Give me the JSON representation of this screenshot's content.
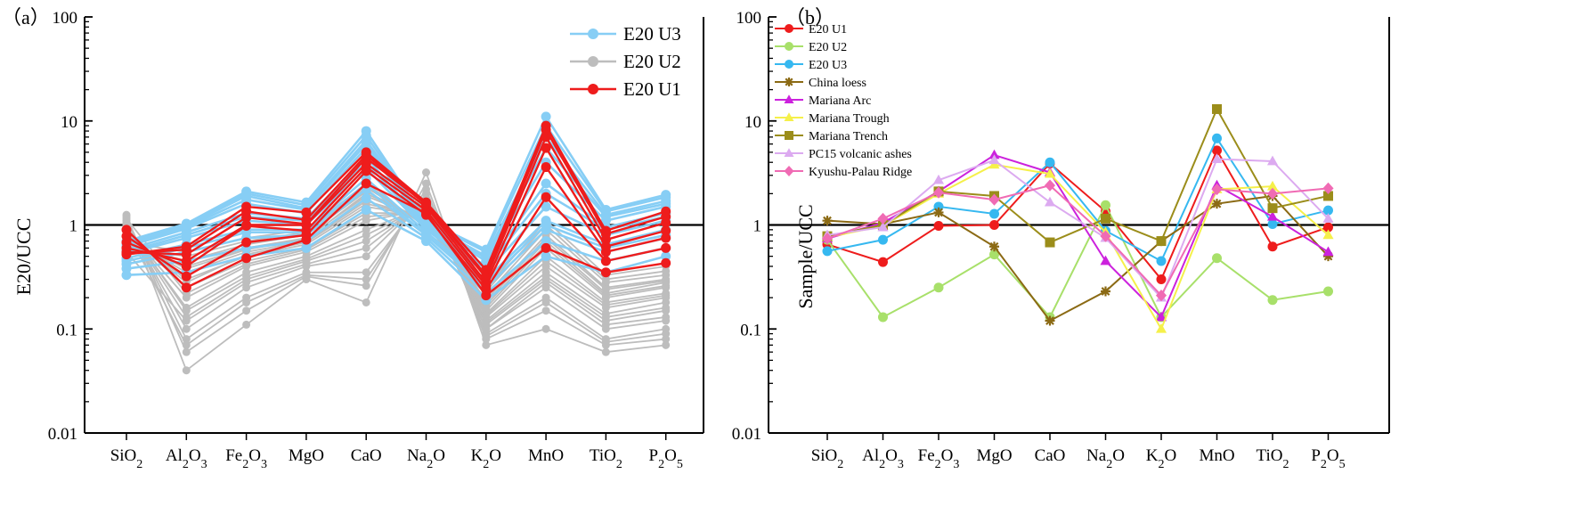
{
  "figure": {
    "colors": {
      "u1": "#ee1c1c",
      "u2": "#bdbdbd",
      "u3": "#87cef5",
      "b_u1": "#ee1c1c",
      "b_u2": "#a8e06a",
      "b_u3": "#36b8f0",
      "china": "#8b6a14",
      "arc": "#cc22dd",
      "trough": "#f5f04a",
      "trench": "#9b8d1a",
      "pc15": "#dcaaf0",
      "kyushu": "#f06bb4"
    }
  },
  "chart_data": [
    {
      "id": "a",
      "panel_label": "（a）",
      "type": "line",
      "scale": "log",
      "ylabel": "E20/UCC",
      "ylim": [
        0.01,
        100
      ],
      "yticks": [
        "0.01",
        "0.1",
        "1",
        "10",
        "100"
      ],
      "categories": [
        "SiO2",
        "Al2O3",
        "Fe2O3",
        "MgO",
        "CaO",
        "Na2O",
        "K2O",
        "MnO",
        "TiO2",
        "P2O5"
      ],
      "reference_line": 1,
      "legend": [
        {
          "label": "E20 U3",
          "color_key": "u3"
        },
        {
          "label": "E20 U2",
          "color_key": "u2"
        },
        {
          "label": "E20 U1",
          "color_key": "u1"
        }
      ],
      "series": [
        {
          "name": "E20 U2",
          "color_key": "u2",
          "lines": [
            [
              1.25,
              0.04,
              0.11,
              0.3,
              0.18,
              3.2,
              0.07,
              0.1,
              0.06,
              0.07
            ],
            [
              1.2,
              0.06,
              0.15,
              0.32,
              0.26,
              2.5,
              0.08,
              0.15,
              0.07,
              0.08
            ],
            [
              1.1,
              0.08,
              0.2,
              0.35,
              0.35,
              2.0,
              0.09,
              0.2,
              0.08,
              0.1
            ],
            [
              1.05,
              0.1,
              0.25,
              0.4,
              0.5,
              1.8,
              0.1,
              0.25,
              0.1,
              0.12
            ],
            [
              1.0,
              0.13,
              0.3,
              0.45,
              0.7,
              1.6,
              0.11,
              0.3,
              0.12,
              0.15
            ],
            [
              0.95,
              0.16,
              0.35,
              0.5,
              0.9,
              1.5,
              0.12,
              0.35,
              0.14,
              0.18
            ],
            [
              0.9,
              0.2,
              0.4,
              0.55,
              1.1,
              1.4,
              0.13,
              0.4,
              0.16,
              0.2
            ],
            [
              0.85,
              0.25,
              0.45,
              0.6,
              1.3,
              1.3,
              0.14,
              0.5,
              0.18,
              0.22
            ],
            [
              0.8,
              0.3,
              0.5,
              0.65,
              1.5,
              1.2,
              0.15,
              0.6,
              0.2,
              0.25
            ],
            [
              0.75,
              0.35,
              0.55,
              0.7,
              1.7,
              1.15,
              0.17,
              0.7,
              0.22,
              0.28
            ],
            [
              0.7,
              0.4,
              0.6,
              0.75,
              1.9,
              1.1,
              0.19,
              0.8,
              0.25,
              0.3
            ],
            [
              0.65,
              0.45,
              0.65,
              0.8,
              2.1,
              1.05,
              0.21,
              0.9,
              0.28,
              0.33
            ],
            [
              0.6,
              0.5,
              0.7,
              0.85,
              2.3,
              1.0,
              0.23,
              1.0,
              0.3,
              0.36
            ],
            [
              0.55,
              0.12,
              0.28,
              0.42,
              0.6,
              1.7,
              0.1,
              0.28,
              0.11,
              0.13
            ],
            [
              0.9,
              0.07,
              0.18,
              0.33,
              0.3,
              2.2,
              0.085,
              0.18,
              0.075,
              0.09
            ],
            [
              1.15,
              0.22,
              0.42,
              0.58,
              1.2,
              1.35,
              0.135,
              0.45,
              0.17,
              0.21
            ],
            [
              0.8,
              0.28,
              0.52,
              0.68,
              1.6,
              1.18,
              0.16,
              0.65,
              0.21,
              0.26
            ],
            [
              0.72,
              0.38,
              0.58,
              0.73,
              2.0,
              1.1,
              0.18,
              0.75,
              0.24,
              0.29
            ],
            [
              1.0,
              0.15,
              0.32,
              0.47,
              0.8,
              1.55,
              0.115,
              0.32,
              0.13,
              0.16
            ],
            [
              0.68,
              0.55,
              0.75,
              0.9,
              2.5,
              0.95,
              0.25,
              1.1,
              0.33,
              0.4
            ]
          ]
        },
        {
          "name": "E20 U3",
          "color_key": "u3",
          "lines": [
            [
              0.33,
              0.35,
              0.5,
              0.6,
              1.4,
              0.7,
              0.19,
              0.5,
              0.35,
              0.5
            ],
            [
              0.38,
              0.45,
              0.6,
              0.7,
              1.8,
              0.75,
              0.22,
              0.7,
              0.45,
              0.6
            ],
            [
              0.42,
              0.55,
              0.75,
              0.8,
              2.2,
              0.8,
              0.25,
              0.9,
              0.55,
              0.75
            ],
            [
              0.48,
              0.65,
              0.9,
              0.9,
              2.8,
              0.85,
              0.3,
              1.1,
              0.65,
              0.9
            ],
            [
              0.53,
              0.75,
              1.1,
              1.0,
              3.5,
              0.9,
              0.35,
              1.5,
              0.8,
              1.1
            ],
            [
              0.58,
              0.85,
              1.3,
              1.15,
              4.5,
              0.95,
              0.4,
              2.5,
              0.95,
              1.3
            ],
            [
              0.62,
              0.92,
              1.6,
              1.3,
              5.5,
              1.0,
              0.45,
              4.0,
              1.1,
              1.5
            ],
            [
              0.66,
              0.98,
              1.9,
              1.45,
              6.5,
              1.05,
              0.5,
              7.0,
              1.25,
              1.7
            ],
            [
              0.7,
              1.03,
              2.1,
              1.65,
              8.0,
              1.1,
              0.58,
              11.0,
              1.4,
              1.95
            ],
            [
              0.45,
              0.6,
              0.85,
              0.85,
              2.5,
              0.8,
              0.28,
              1.0,
              0.6,
              0.8
            ],
            [
              0.55,
              0.8,
              1.2,
              1.1,
              4.0,
              0.92,
              0.38,
              2.0,
              0.9,
              1.2
            ],
            [
              0.64,
              0.95,
              1.75,
              1.4,
              6.0,
              1.02,
              0.48,
              5.5,
              1.2,
              1.6
            ],
            [
              0.68,
              1.0,
              2.0,
              1.55,
              7.2,
              1.08,
              0.55,
              9.0,
              1.35,
              1.85
            ]
          ]
        },
        {
          "name": "E20 U1",
          "color_key": "u1",
          "lines": [
            [
              0.9,
              0.25,
              0.48,
              0.72,
              2.5,
              1.3,
              0.21,
              0.6,
              0.35,
              0.43
            ],
            [
              0.78,
              0.32,
              0.68,
              0.8,
              3.3,
              1.25,
              0.24,
              1.85,
              0.45,
              0.6
            ],
            [
              0.68,
              0.4,
              0.98,
              0.88,
              3.6,
              1.38,
              0.26,
              3.6,
              0.55,
              0.75
            ],
            [
              0.6,
              0.45,
              1.0,
              1.0,
              3.9,
              1.5,
              0.28,
              5.5,
              0.62,
              0.88
            ],
            [
              0.55,
              0.52,
              1.18,
              1.02,
              4.4,
              1.58,
              0.31,
              7.0,
              0.72,
              1.05
            ],
            [
              0.53,
              0.58,
              1.35,
              1.12,
              4.7,
              1.6,
              0.33,
              8.2,
              0.82,
              1.2
            ],
            [
              0.52,
              0.62,
              1.5,
              1.32,
              5.0,
              1.65,
              0.37,
              9.0,
              0.88,
              1.35
            ]
          ]
        }
      ]
    },
    {
      "id": "b",
      "panel_label": "（b）",
      "type": "line",
      "scale": "log",
      "ylabel": "Sample/UCC",
      "ylim": [
        0.01,
        100
      ],
      "yticks": [
        "0.01",
        "0.1",
        "1",
        "10",
        "100"
      ],
      "categories": [
        "SiO2",
        "Al2O3",
        "Fe2O3",
        "MgO",
        "CaO",
        "Na2O",
        "K2O",
        "MnO",
        "TiO2",
        "P2O5"
      ],
      "reference_line": 1,
      "series": [
        {
          "name": "E20 U1",
          "color_key": "b_u1",
          "marker": "circle",
          "values": [
            0.65,
            0.44,
            0.98,
            1.0,
            3.9,
            1.35,
            0.3,
            5.2,
            0.62,
            0.95
          ]
        },
        {
          "name": "E20 U2",
          "color_key": "b_u2",
          "marker": "circle",
          "values": [
            0.72,
            0.13,
            0.25,
            0.52,
            0.13,
            1.55,
            0.13,
            0.48,
            0.19,
            0.23
          ]
        },
        {
          "name": "E20 U3",
          "color_key": "b_u3",
          "marker": "circle",
          "values": [
            0.56,
            0.72,
            1.5,
            1.28,
            4.0,
            0.88,
            0.45,
            6.8,
            1.02,
            1.38
          ]
        },
        {
          "name": "China loess",
          "color_key": "china",
          "marker": "star",
          "values": [
            1.1,
            1.02,
            1.32,
            0.62,
            0.12,
            0.23,
            0.7,
            1.6,
            1.9,
            0.5
          ]
        },
        {
          "name": "Mariana Arc",
          "color_key": "arc",
          "marker": "triangle",
          "values": [
            0.74,
            1.05,
            2.1,
            4.7,
            3.2,
            0.45,
            0.13,
            2.4,
            1.2,
            0.55
          ]
        },
        {
          "name": "Mariana Trough",
          "color_key": "trough",
          "marker": "triangle",
          "values": [
            0.76,
            0.98,
            2.0,
            3.8,
            3.1,
            0.85,
            0.1,
            2.2,
            2.35,
            0.8
          ]
        },
        {
          "name": "Mariana Trench",
          "color_key": "trench",
          "marker": "square",
          "values": [
            0.78,
            1.0,
            2.1,
            1.9,
            0.68,
            1.15,
            0.7,
            13.0,
            1.45,
            1.9
          ]
        },
        {
          "name": "PC15 volcanic ashes",
          "color_key": "pc15",
          "marker": "triangle",
          "values": [
            0.8,
            0.95,
            2.7,
            4.2,
            1.65,
            0.75,
            0.2,
            4.3,
            4.1,
            1.15
          ]
        },
        {
          "name": "Kyushu-Palau Ridge",
          "color_key": "kyushu",
          "marker": "diamond",
          "values": [
            0.74,
            1.15,
            2.05,
            1.75,
            2.4,
            0.78,
            0.21,
            2.2,
            2.0,
            2.25
          ]
        }
      ]
    }
  ]
}
